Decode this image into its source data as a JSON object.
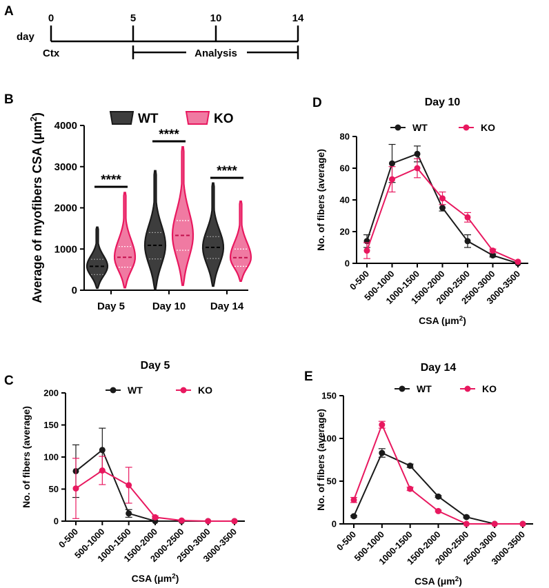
{
  "colors": {
    "wt": "#1a1a1a",
    "ko": "#e8185f",
    "wt_fill": "#3d3d3d",
    "ko_fill": "#f07aa2"
  },
  "panel_a": {
    "label": "A",
    "day_label": "day",
    "ticks": [
      "0",
      "5",
      "10",
      "14"
    ],
    "ctx_label": "Ctx",
    "analysis_label": "Analysis"
  },
  "panel_b": {
    "label": "B",
    "legend": {
      "wt": "WT",
      "ko": "KO"
    },
    "significance": "****"
  },
  "panel_c": {
    "label": "C"
  },
  "panel_d": {
    "label": "D"
  },
  "panel_e": {
    "label": "E"
  },
  "chart_data": [
    {
      "id": "B",
      "type": "violin",
      "title": "",
      "ylabel": "Average of myofibers CSA (μm²)",
      "ylim": [
        0,
        4000
      ],
      "yticks": [
        0,
        1000,
        2000,
        3000,
        4000
      ],
      "categories": [
        "Day 5",
        "Day 10",
        "Day 14"
      ],
      "series": [
        {
          "name": "WT",
          "min": [
            50,
            30,
            100
          ],
          "max": [
            1530,
            2900,
            2600
          ],
          "median": [
            580,
            1090,
            1040
          ],
          "q1": [
            380,
            760,
            770
          ],
          "q3": [
            750,
            1400,
            1300
          ]
        },
        {
          "name": "KO",
          "min": [
            60,
            120,
            220
          ],
          "max": [
            2370,
            3480,
            2160
          ],
          "median": [
            800,
            1330,
            790
          ],
          "q1": [
            560,
            970,
            580
          ],
          "q3": [
            1060,
            1690,
            1000
          ]
        }
      ],
      "significance": [
        "****",
        "****",
        "****"
      ]
    },
    {
      "id": "C",
      "type": "line",
      "title": "Day 5",
      "xlabel": "CSA (μm²)",
      "ylabel": "No. of fibers (average)",
      "ylim": [
        0,
        200
      ],
      "yticks": [
        0,
        50,
        100,
        150,
        200
      ],
      "categories": [
        "0-500",
        "500-1000",
        "1000-1500",
        "1500-2000",
        "2000-2500",
        "2500-3000",
        "3000-3500"
      ],
      "series": [
        {
          "name": "WT",
          "values": [
            78,
            111,
            12,
            0,
            0,
            0,
            0
          ],
          "errors": [
            41,
            34,
            6,
            0,
            0,
            0,
            0
          ]
        },
        {
          "name": "KO",
          "values": [
            51,
            79,
            56,
            6,
            1,
            0,
            0
          ],
          "errors": [
            47,
            22,
            28,
            2,
            1,
            0,
            0
          ]
        }
      ]
    },
    {
      "id": "D",
      "type": "line",
      "title": "Day 10",
      "xlabel": "CSA (μm²)",
      "ylabel": "No. of fibers (average)",
      "ylim": [
        0,
        80
      ],
      "yticks": [
        0,
        20,
        40,
        60,
        80
      ],
      "categories": [
        "0-500",
        "500-1000",
        "1000-1500",
        "1500-2000",
        "2000-2500",
        "2500-3000",
        "3000-3500"
      ],
      "series": [
        {
          "name": "WT",
          "values": [
            14,
            63,
            69,
            35,
            14,
            5,
            0
          ],
          "errors": [
            4,
            12,
            5,
            2,
            4,
            1,
            0
          ]
        },
        {
          "name": "KO",
          "values": [
            8,
            53,
            60,
            41,
            29,
            8,
            1
          ],
          "errors": [
            5,
            8,
            6,
            4,
            3,
            1,
            0
          ]
        }
      ]
    },
    {
      "id": "E",
      "type": "line",
      "title": "Day 14",
      "xlabel": "CSA (μm²)",
      "ylabel": "No. of fibers (average)",
      "ylim": [
        0,
        150
      ],
      "yticks": [
        0,
        50,
        100,
        150
      ],
      "categories": [
        "0-500",
        "500-1000",
        "1000-1500",
        "1500-2000",
        "2000-2500",
        "2500-3000",
        "3000-3500"
      ],
      "series": [
        {
          "name": "WT",
          "values": [
            9,
            83,
            68,
            32,
            8,
            0,
            0
          ],
          "errors": [
            1,
            5,
            2,
            1,
            1,
            0,
            0
          ]
        },
        {
          "name": "KO",
          "values": [
            28,
            116,
            41,
            15,
            0,
            0,
            0
          ],
          "errors": [
            3,
            4,
            2,
            1,
            0,
            0,
            0
          ]
        }
      ]
    }
  ]
}
